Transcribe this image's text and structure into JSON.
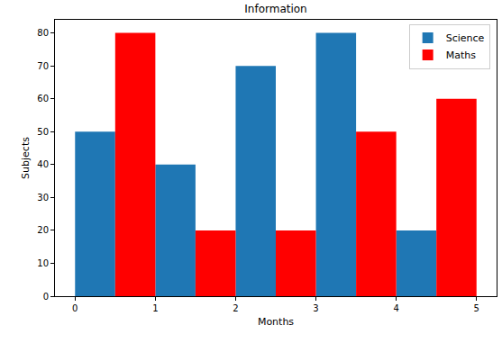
{
  "chart_data": {
    "type": "bar",
    "title": "Information",
    "x_label": "Months",
    "y_label": "Subjects",
    "series": [
      {
        "name": "Science",
        "color": "#1f77b4",
        "x": [
          0.25,
          1.25,
          2.25,
          3.25,
          4.25
        ],
        "values": [
          50,
          40,
          70,
          80,
          20
        ]
      },
      {
        "name": "Maths",
        "color": "red",
        "x": [
          0.75,
          1.75,
          2.75,
          3.75,
          4.75
        ],
        "values": [
          80,
          20,
          20,
          50,
          60
        ]
      }
    ],
    "xlim": [
      -0.25,
      5.25
    ],
    "xticks": [
      0,
      1,
      2,
      3,
      4,
      5
    ],
    "ylim": [
      0,
      84
    ],
    "yticks": [
      0,
      10,
      20,
      30,
      40,
      50,
      60,
      70,
      80
    ],
    "grid": false,
    "legend": "upper right"
  }
}
